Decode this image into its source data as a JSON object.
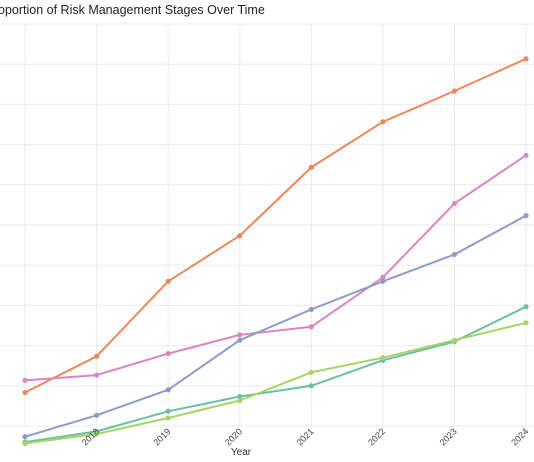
{
  "chart_data": {
    "type": "line",
    "title": "oportion of Risk Management Stages Over Time",
    "xlabel": "Year",
    "ylabel": "",
    "x": [
      2017,
      2018,
      2019,
      2020,
      2021,
      2022,
      2023,
      2024
    ],
    "x_tick_labels": [
      "2018",
      "2019",
      "2020",
      "2021",
      "2022",
      "2023",
      "2024"
    ],
    "xlim": [
      2016.65,
      2024.0
    ],
    "ylim": [
      0,
      300
    ],
    "grid": true,
    "legend": "none",
    "series": [
      {
        "color": "#f0875b",
        "values": [
          25,
          52,
          108,
          142,
          193,
          227,
          250,
          274
        ]
      },
      {
        "color": "#da86c4",
        "values": [
          34,
          38,
          54,
          68,
          74,
          111,
          166,
          202
        ]
      },
      {
        "color": "#8c9cc9",
        "values": [
          -8,
          8,
          27,
          64,
          87,
          108,
          128,
          157
        ]
      },
      {
        "color": "#6cbfa1",
        "values": [
          -12,
          -4,
          11,
          22,
          30,
          49,
          63,
          89
        ]
      },
      {
        "color": "#a6d567",
        "values": [
          -13,
          -6,
          6,
          19,
          40,
          51,
          64,
          77
        ]
      }
    ]
  }
}
